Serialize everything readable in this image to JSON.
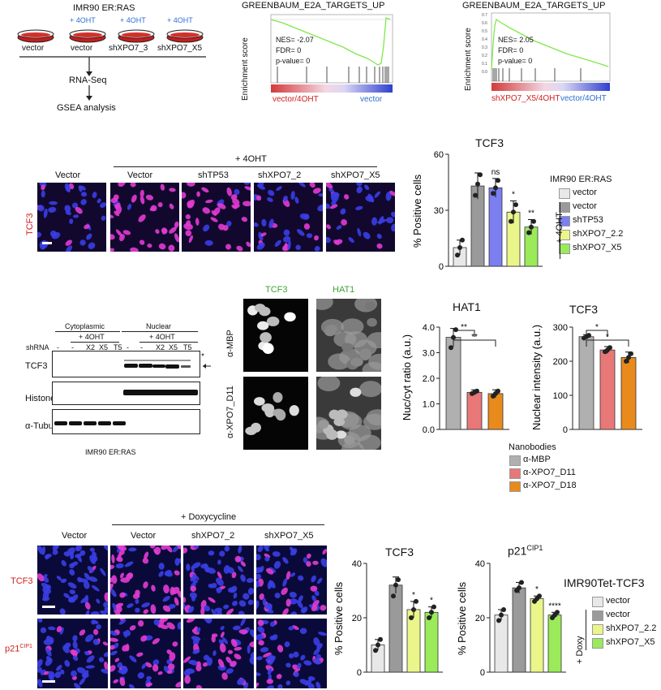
{
  "panelA": {
    "title": "IMR90 ER:RAS",
    "dishes": [
      {
        "top": "",
        "bottom": "vector"
      },
      {
        "top": "+ 4OHT",
        "bottom": "vector"
      },
      {
        "top": "+ 4OHT",
        "bottom": "shXPO7_3"
      },
      {
        "top": "+ 4OHT",
        "bottom": "shXPO7_X5"
      }
    ],
    "step1": "RNA-Seq",
    "step2": "GSEA analysis"
  },
  "gsea1": {
    "title": "GREENBAUM_E2A_TARGETS_UP",
    "ylabel": "Enrichment score",
    "nes": "NES= -2.07",
    "fdr": "FDR= 0",
    "pval": "p-value= 0",
    "left_label": "vector/4OHT",
    "right_label": "vector",
    "yticks": [
      "0.0",
      "-0.1",
      "-0.2",
      "-0.3",
      "-0.4",
      "-0.5",
      "-0.6",
      "-0.7"
    ],
    "colors": {
      "curve": "#7fe84a",
      "left": "#d33a3a",
      "right": "#2e3fcf"
    }
  },
  "gsea2": {
    "title": "GREENBAUM_E2A_TARGETS_UP",
    "ylabel": "Enrichment score",
    "nes": "NES= 2.05",
    "fdr": "FDR= 0",
    "pval": "p-value= 0",
    "left_label": "shXPO7_X5/4OHT",
    "right_label": "vector/4OHT",
    "yticks": [
      "0.7",
      "0.6",
      "0.5",
      "0.4",
      "0.3",
      "0.2",
      "0.1",
      "0.0"
    ],
    "colors": {
      "curve": "#7fe84a",
      "left": "#d33a3a",
      "right": "#2e3fcf"
    }
  },
  "panelB": {
    "header": "+ 4OHT",
    "columns": [
      "Vector",
      "Vector",
      "shTP53",
      "shXPO7_2",
      "shXPO7_X5"
    ],
    "row_label": "TCF3"
  },
  "chartB": {
    "title": "TCF3",
    "legend_title": "IMR90 ER:RAS",
    "bracket_label": "+ 4OHT",
    "legend": [
      "vector",
      "vector",
      "shTP53",
      "shXPO7_2.2",
      "shXPO7_X5"
    ]
  },
  "blot": {
    "cyto_label": "Cytoplasmic",
    "nuc_label": "Nuclear",
    "ohtl": "+ 4OHT",
    "ohtr": "+ 4OHT",
    "shrna": "shRNA",
    "lanes": [
      "-",
      "-",
      "X2",
      "X5",
      "T5",
      "-",
      "-",
      "X2",
      "X5",
      "T5"
    ],
    "rows": [
      "TCF3",
      "Histone H3",
      "α-Tubulin"
    ],
    "star": "*",
    "caption": "IMR90 ER:RAS"
  },
  "imgC": {
    "col1": "TCF3",
    "col2": "HAT1",
    "row1": "α-MBP",
    "row2": "α-XPO7_D11"
  },
  "chartHAT1": {
    "title": "HAT1"
  },
  "chartTCF3b": {
    "title": "TCF3"
  },
  "nanobodies": {
    "title": "Nanobodies",
    "items": [
      "α-MBP",
      "α-XPO7_D11",
      "α-XPO7_D18"
    ]
  },
  "panelD": {
    "header": "+ Doxycycline",
    "columns": [
      "Vector",
      "Vector",
      "shXPO7_2",
      "shXPO7_X5"
    ],
    "row1": "TCF3",
    "row2_main": "p21",
    "row2_sup": "CIP1"
  },
  "chartD1": {
    "title": "TCF3"
  },
  "chartD2": {
    "title_main": "p21",
    "title_sup": "CIP1"
  },
  "legendD": {
    "title": "IMR90Tet-TCF3",
    "bracket_label": "+ Doxy",
    "items": [
      "vector",
      "vector",
      "shXPO7_2.2",
      "shXPO7_X5"
    ]
  },
  "chart_data": [
    {
      "type": "bar",
      "title": "TCF3",
      "ylabel": "% Positive cells",
      "ylim": [
        0,
        60
      ],
      "yticks": [
        0,
        30,
        60
      ],
      "categories": [
        "vector",
        "vector",
        "shTP53",
        "shXPO7_2.2",
        "shXPO7_X5"
      ],
      "values": [
        10,
        43,
        42,
        29,
        21
      ],
      "errors": [
        4,
        7,
        5,
        6,
        4
      ],
      "points": [
        [
          6,
          10,
          14
        ],
        [
          38,
          44,
          49
        ],
        [
          39,
          42,
          46
        ],
        [
          24,
          29,
          33
        ],
        [
          18,
          21,
          24
        ]
      ],
      "significance": [
        "",
        "",
        "ns",
        "*",
        "**"
      ],
      "colors": [
        "#e8e8e8",
        "#9a9a9a",
        "#7b7ff0",
        "#eaf58a",
        "#9bea5a"
      ]
    },
    {
      "type": "bar",
      "title": "HAT1",
      "ylabel": "Nuc/cyt ratio (a.u.)",
      "ylim": [
        0,
        4
      ],
      "yticks": [
        "0.0",
        "1.0",
        "2.0",
        "3.0",
        "4.0"
      ],
      "categories": [
        "α-MBP",
        "α-XPO7_D11",
        "α-XPO7_D18"
      ],
      "values": [
        3.6,
        1.45,
        1.4
      ],
      "errors": [
        0.35,
        0.1,
        0.15
      ],
      "points": [
        [
          3.2,
          3.6,
          3.9
        ],
        [
          1.4,
          1.45,
          1.5
        ],
        [
          1.3,
          1.4,
          1.5
        ]
      ],
      "comparisons": [
        {
          "a": 0,
          "b": 1,
          "label": "**"
        },
        {
          "a": 0,
          "b": 2,
          "label": "**"
        }
      ],
      "colors": [
        "#b0b0b0",
        "#e87878",
        "#e88a1c"
      ]
    },
    {
      "type": "bar",
      "title": "TCF3",
      "ylabel": "Nuclear intensity (a.u.)",
      "ylim": [
        0,
        300
      ],
      "yticks": [
        0,
        100,
        200,
        300
      ],
      "categories": [
        "α-MBP",
        "α-XPO7_D11",
        "α-XPO7_D18"
      ],
      "values": [
        272,
        233,
        211
      ],
      "errors": [
        6,
        10,
        16
      ],
      "points": [
        [
          268,
          272,
          276
        ],
        [
          228,
          233,
          240
        ],
        [
          200,
          211,
          222
        ]
      ],
      "comparisons": [
        {
          "a": 0,
          "b": 1,
          "label": "*"
        },
        {
          "a": 0,
          "b": 2,
          "label": "*"
        }
      ],
      "colors": [
        "#b0b0b0",
        "#e87878",
        "#e88a1c"
      ]
    },
    {
      "type": "bar",
      "title": "TCF3",
      "ylabel": "% Positive cells",
      "ylim": [
        0,
        40
      ],
      "yticks": [
        0,
        20,
        40
      ],
      "categories": [
        "vector",
        "vector",
        "shXPO7_2.2",
        "shXPO7_X5"
      ],
      "values": [
        10,
        32,
        23,
        22
      ],
      "errors": [
        2,
        3,
        3,
        2
      ],
      "points": [
        [
          8,
          10,
          12
        ],
        [
          28,
          32,
          34
        ],
        [
          20,
          23,
          26
        ],
        [
          20,
          22,
          24
        ]
      ],
      "significance": [
        "",
        "",
        "*",
        "*"
      ],
      "colors": [
        "#e8e8e8",
        "#9a9a9a",
        "#eaf58a",
        "#9bea5a"
      ]
    },
    {
      "type": "bar",
      "title": "p21CIP1",
      "ylabel": "% Positive cells",
      "ylim": [
        0,
        40
      ],
      "yticks": [
        0,
        20,
        40
      ],
      "categories": [
        "vector",
        "vector",
        "shXPO7_2.2",
        "shXPO7_X5"
      ],
      "values": [
        21,
        31,
        27,
        21
      ],
      "errors": [
        2,
        2,
        1,
        1
      ],
      "points": [
        [
          19,
          21,
          23
        ],
        [
          30,
          31,
          33
        ],
        [
          26,
          27,
          28
        ],
        [
          20,
          21,
          22
        ]
      ],
      "significance": [
        "",
        "",
        "*",
        "****"
      ],
      "colors": [
        "#e8e8e8",
        "#9a9a9a",
        "#eaf58a",
        "#9bea5a"
      ]
    }
  ]
}
